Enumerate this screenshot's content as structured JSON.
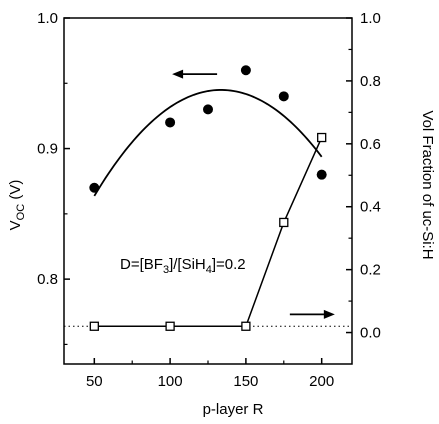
{
  "chart_data": {
    "type": "scatter",
    "x_axis": {
      "label": "p-layer R",
      "range": [
        30,
        220
      ],
      "ticks": [
        50,
        100,
        150,
        200
      ],
      "tick_labels": [
        "50",
        "100",
        "150",
        "200"
      ]
    },
    "y_left": {
      "label_main": "V",
      "label_sub": "OC",
      "label_unit": " (V)",
      "range": [
        0.735,
        1.0
      ],
      "ticks": [
        0.8,
        0.9,
        1.0
      ],
      "tick_labels": [
        "0.8",
        "0.9",
        "1.0"
      ]
    },
    "y_right": {
      "label": "Vol Fraction of uc-Si:H",
      "range": [
        -0.1,
        1.0
      ],
      "ticks": [
        0.0,
        0.2,
        0.4,
        0.6,
        0.8,
        1.0
      ],
      "tick_labels": [
        "0.0",
        "0.2",
        "0.4",
        "0.6",
        "0.8",
        "1.0"
      ]
    },
    "series": [
      {
        "axis": "left",
        "marker": "filled-circle",
        "x": [
          50,
          100,
          125,
          150,
          175,
          200
        ],
        "y": [
          0.87,
          0.92,
          0.93,
          0.96,
          0.94,
          0.88
        ],
        "fit_curve": true
      },
      {
        "axis": "right",
        "marker": "open-square",
        "x": [
          50,
          100,
          150,
          175,
          200
        ],
        "y": [
          0.02,
          0.02,
          0.02,
          0.35,
          0.62
        ],
        "connected": true
      }
    ],
    "reference_line": {
      "axis": "right",
      "y": 0.02,
      "style": "dotted"
    },
    "annotation": {
      "prefix": "D=[BF",
      "sub1": "3",
      "middle": "]/[SiH",
      "sub2": "4",
      "suffix": "]=0.2"
    },
    "arrows": [
      {
        "points_to": "left-axis",
        "from_x": 131,
        "y_left": 0.957
      },
      {
        "points_to": "right-axis",
        "from_x": 179,
        "y_left": 0.773
      }
    ],
    "colors": {
      "ink": "#000000",
      "background": "#ffffff"
    }
  }
}
